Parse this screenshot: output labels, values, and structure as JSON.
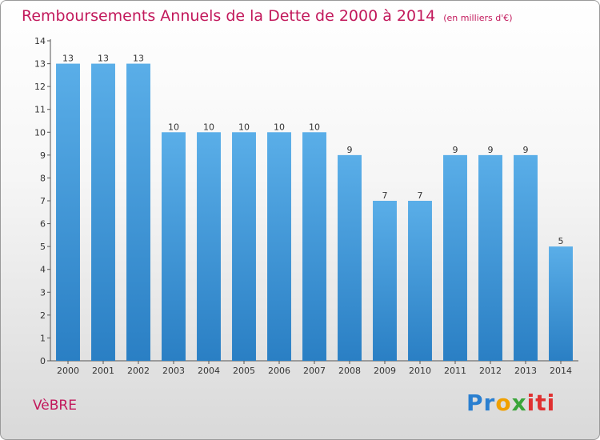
{
  "title": "Remboursements Annuels de la Dette de 2000 à 2014",
  "unit": "(en milliers d'€)",
  "commune": "VèBRE",
  "logo": "Proxiti",
  "colors": {
    "bar": "#5aaee8",
    "bar_dark": "#2a7fc4",
    "title": "#c2185b"
  },
  "chart_data": {
    "type": "bar",
    "title": "Remboursements Annuels de la Dette de 2000 à 2014",
    "subtitle": "(en milliers d'€)",
    "xlabel": "",
    "ylabel": "",
    "ylim": [
      0,
      14
    ],
    "yticks": [
      0,
      1,
      2,
      3,
      4,
      5,
      6,
      7,
      8,
      9,
      10,
      11,
      12,
      13,
      14
    ],
    "grid": false,
    "categories": [
      "2000",
      "2001",
      "2002",
      "2003",
      "2004",
      "2005",
      "2006",
      "2007",
      "2008",
      "2009",
      "2010",
      "2011",
      "2012",
      "2013",
      "2014"
    ],
    "values": [
      13,
      13,
      13,
      10,
      10,
      10,
      10,
      10,
      9,
      7,
      7,
      9,
      9,
      9,
      5
    ]
  }
}
